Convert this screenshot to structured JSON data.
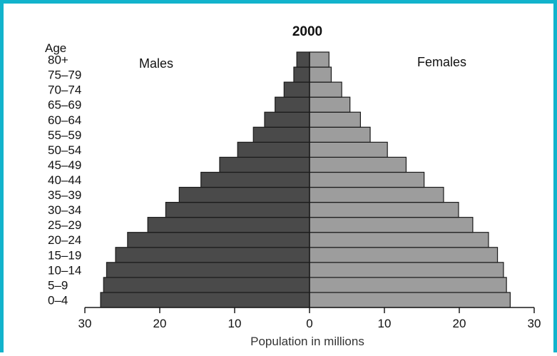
{
  "chart_data": {
    "type": "bar",
    "orientation": "horizontal-pyramid",
    "title": "2000",
    "age_header": "Age",
    "xlabel": "Population in millions",
    "categories": [
      "0–4",
      "5–9",
      "10–14",
      "15–19",
      "20–24",
      "25–29",
      "30–34",
      "35–39",
      "40–44",
      "45–49",
      "50–54",
      "55–59",
      "60–64",
      "65–69",
      "70–74",
      "75–79",
      "80+"
    ],
    "series": [
      {
        "name": "Males",
        "side": "left",
        "color": "#4a4a4a",
        "values": [
          27.9,
          27.5,
          27.1,
          25.9,
          24.3,
          21.6,
          19.2,
          17.4,
          14.5,
          12.0,
          9.6,
          7.5,
          6.0,
          4.6,
          3.4,
          2.1,
          1.7
        ]
      },
      {
        "name": "Females",
        "side": "right",
        "color": "#9d9d9d",
        "values": [
          26.8,
          26.3,
          25.9,
          25.1,
          23.9,
          21.8,
          19.9,
          17.9,
          15.3,
          12.9,
          10.4,
          8.1,
          6.8,
          5.4,
          4.3,
          2.9,
          2.6
        ]
      }
    ],
    "xticks": [
      "30",
      "20",
      "10",
      "0",
      "10",
      "20",
      "30"
    ],
    "xlim": [
      -30,
      30
    ],
    "grid": false,
    "legend": "series names printed above each half of the pyramid"
  }
}
